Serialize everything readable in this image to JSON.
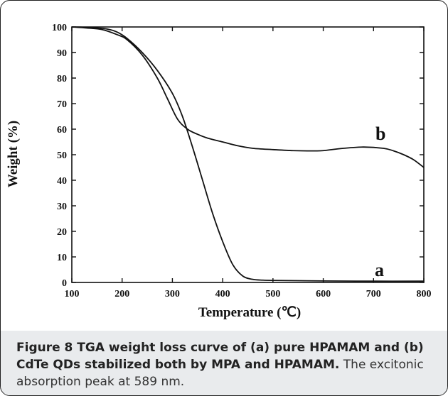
{
  "caption": {
    "lead": "Figure 8 TGA weight loss curve of (a) pure HPAMAM and (b) CdTe QDs stabilized both by MPA and HPAMAM.",
    "rest": " The excitonic absorption peak at 589 nm."
  },
  "chart_data": {
    "type": "line",
    "xlabel": "Temperature (℃)",
    "ylabel": "Weight (%)",
    "xlim": [
      100,
      800
    ],
    "ylim": [
      0,
      100
    ],
    "xticks": [
      100,
      200,
      300,
      400,
      500,
      600,
      700,
      800
    ],
    "yticks": [
      0,
      10,
      20,
      30,
      40,
      50,
      60,
      70,
      80,
      90,
      100
    ],
    "grid": false,
    "series": [
      {
        "name": "a",
        "x": [
          100,
          140,
          170,
          190,
          210,
          240,
          270,
          300,
          320,
          340,
          360,
          380,
          400,
          420,
          440,
          460,
          480,
          500,
          550,
          600,
          700,
          800
        ],
        "y": [
          100,
          99.8,
          99.2,
          98,
          95.5,
          90,
          83,
          74,
          65,
          53,
          40,
          27,
          16,
          7,
          2.5,
          1.2,
          0.9,
          0.8,
          0.7,
          0.6,
          0.5,
          0.5
        ]
      },
      {
        "name": "b",
        "x": [
          100,
          130,
          160,
          190,
          210,
          240,
          270,
          290,
          310,
          330,
          350,
          370,
          400,
          430,
          460,
          500,
          540,
          580,
          600,
          640,
          680,
          720,
          740,
          760,
          780,
          800
        ],
        "y": [
          100,
          99.6,
          99,
          97,
          95,
          89,
          80,
          72,
          64,
          60,
          58,
          56.5,
          55,
          53.5,
          52.5,
          52,
          51.6,
          51.5,
          51.6,
          52.5,
          53,
          52.5,
          51.5,
          50,
          48,
          45
        ]
      }
    ]
  }
}
